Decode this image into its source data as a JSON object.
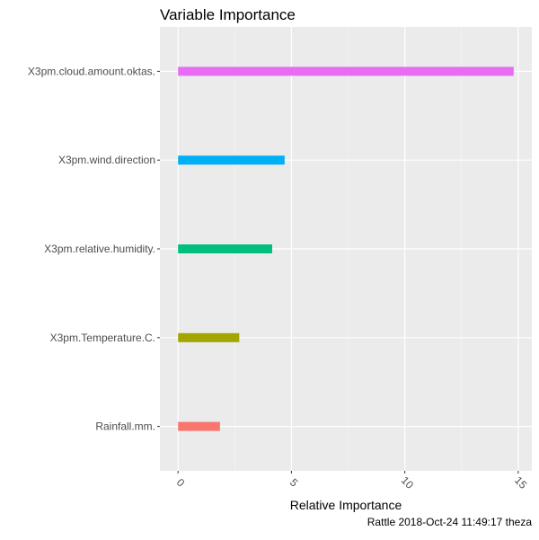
{
  "chart_data": {
    "type": "bar",
    "orientation": "horizontal",
    "title": "Variable Importance",
    "xlabel": "Relative Importance",
    "ylabel": "",
    "xlim": [
      -0.8,
      15.6
    ],
    "xticks": [
      0,
      5,
      10,
      15
    ],
    "xtick_labels": [
      "0",
      "5",
      "10",
      "15"
    ],
    "categories": [
      "Rainfall.mm.",
      "X3pm.Temperature.C.",
      "X3pm.relative.humidity.",
      "X3pm.wind.direction",
      "X3pm.cloud.amount.oktas."
    ],
    "values": [
      1.85,
      2.7,
      4.15,
      4.7,
      14.8
    ],
    "colors": [
      "#F8766D",
      "#A3A500",
      "#00BF7D",
      "#00B0F6",
      "#E76BF3"
    ],
    "grid": true,
    "legend": "none",
    "background": "#EBEBEB",
    "caption": "Rattle 2018-Oct-24 11:49:17 theza"
  }
}
